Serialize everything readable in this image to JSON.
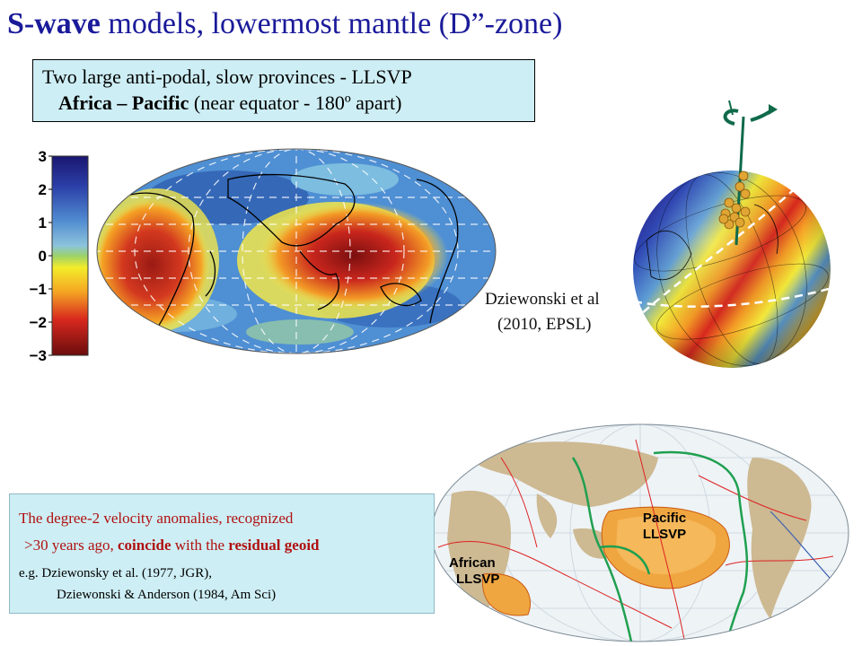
{
  "title": {
    "bold": "S-wave",
    "rest": " models, lowermost mantle (D”-zone)"
  },
  "box1": {
    "line1": "Two large anti-podal, slow provinces  -  LLSVP",
    "line2_bold": "Africa – Pacific",
    "line2_rest": " (near equator - 180º apart)"
  },
  "colorbar": {
    "ticks": [
      "3",
      "2",
      "1",
      "0",
      "−1",
      "−2",
      "−3"
    ]
  },
  "citation": {
    "line1": "Dziewonski et al",
    "line2": "(2010, EPSL)"
  },
  "lower_map": {
    "pacific_label": [
      "Pacific",
      "LLSVP"
    ],
    "african_label": [
      "African",
      "LLSVP"
    ]
  },
  "box2": {
    "line1": "The degree-2 velocity anomalies, recognized",
    "line2_a": ">30 years ago, ",
    "line2_b": "coincide",
    "line2_c": " with the ",
    "line2_d": "residual geoid",
    "ref1": "e.g. Dziewonsky et al. (1977, JGR),",
    "ref2": "Dziewonski & Anderson (1984, Am Sci)"
  },
  "colors": {
    "title": "#1a1a9a",
    "box_bg": "#cdeef4",
    "note_text": "#b01010"
  }
}
